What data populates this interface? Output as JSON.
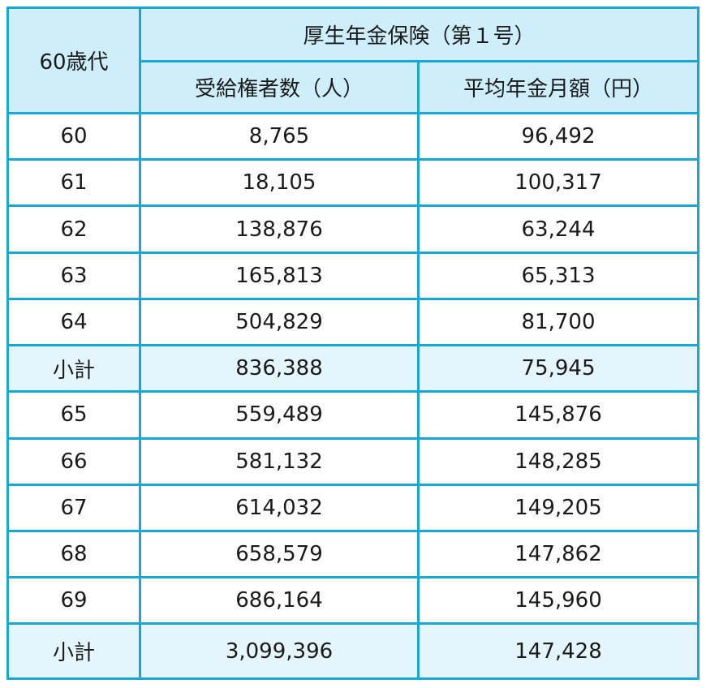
{
  "header": {
    "age_group": "60歳代",
    "group_title": "厚生年金保険（第１号）",
    "col_recipients": "受給権者数（人）",
    "col_avg_pension": "平均年金月額（円）"
  },
  "rows": [
    {
      "age": "60",
      "recipients": "8,765",
      "avg": "96,492"
    },
    {
      "age": "61",
      "recipients": "18,105",
      "avg": "100,317"
    },
    {
      "age": "62",
      "recipients": "138,876",
      "avg": "63,244"
    },
    {
      "age": "63",
      "recipients": "165,813",
      "avg": "65,313"
    },
    {
      "age": "64",
      "recipients": "504,829",
      "avg": "81,700"
    },
    {
      "age": "小計",
      "recipients": "836,388",
      "avg": "75,945"
    },
    {
      "age": "65",
      "recipients": "559,489",
      "avg": "145,876"
    },
    {
      "age": "66",
      "recipients": "581,132",
      "avg": "148,285"
    },
    {
      "age": "67",
      "recipients": "614,032",
      "avg": "149,205"
    },
    {
      "age": "68",
      "recipients": "658,579",
      "avg": "147,862"
    },
    {
      "age": "69",
      "recipients": "686,164",
      "avg": "145,960"
    },
    {
      "age": "小計",
      "recipients": "3,099,396",
      "avg": "147,428"
    }
  ],
  "colors": {
    "border": "#19a7d6",
    "header_bg": "#cdeefa",
    "subtotal_bg": "#e4f5fc"
  }
}
